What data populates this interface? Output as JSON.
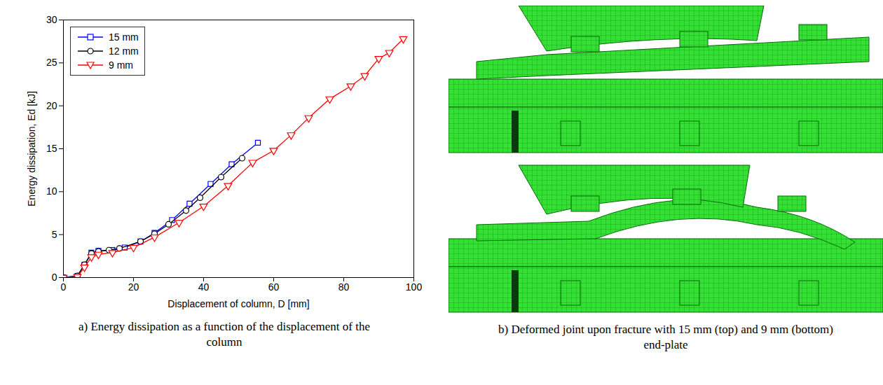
{
  "chart_data": {
    "type": "line",
    "xlabel": "Displacement of column, D [mm]",
    "ylabel": "Energy dissipation, Ed [kJ]",
    "xlim": [
      0,
      100
    ],
    "xticks": [
      0,
      20,
      40,
      60,
      80,
      100
    ],
    "ylim": [
      0,
      30
    ],
    "yticks": [
      0,
      5,
      10,
      15,
      20,
      25,
      30
    ],
    "grid": false,
    "legend": "top-left",
    "caption": "a) Energy dissipation as a function of the displacement of the column",
    "series": [
      {
        "name": "15 mm",
        "color": "#0000ff",
        "marker": "square",
        "x": [
          0,
          4,
          6,
          8,
          10,
          14,
          17.5,
          22,
          26,
          31,
          36,
          42,
          48,
          55.5
        ],
        "values": [
          0,
          0.2,
          1.5,
          2.9,
          3.1,
          3.2,
          3.5,
          4.2,
          5.2,
          6.7,
          8.6,
          10.9,
          13.2,
          15.7
        ]
      },
      {
        "name": "12 mm",
        "color": "#000000",
        "marker": "circle",
        "x": [
          0,
          4,
          6,
          8,
          10,
          13,
          16,
          22,
          26,
          30,
          35,
          39,
          45,
          51
        ],
        "values": [
          0,
          0.2,
          1.5,
          2.8,
          3.05,
          3.2,
          3.4,
          4.2,
          5.1,
          6.2,
          7.8,
          9.3,
          11.7,
          13.9
        ]
      },
      {
        "name": "9 mm",
        "color": "#ff0000",
        "marker": "triangle-down",
        "x": [
          0,
          4,
          6,
          8,
          10,
          14,
          20,
          26,
          33,
          40,
          47,
          54,
          60,
          65,
          70,
          76,
          82,
          86,
          90,
          93,
          97
        ],
        "values": [
          0,
          0.1,
          1.2,
          2.4,
          2.7,
          2.9,
          3.5,
          4.7,
          6.4,
          8.3,
          10.7,
          13.4,
          14.8,
          16.6,
          18.6,
          20.8,
          22.3,
          23.5,
          25.5,
          26.2,
          27.8
        ]
      }
    ]
  },
  "figure_b": {
    "caption": "b) Deformed joint upon fracture with 15 mm (top) and 9 mm (bottom) end-plate"
  }
}
